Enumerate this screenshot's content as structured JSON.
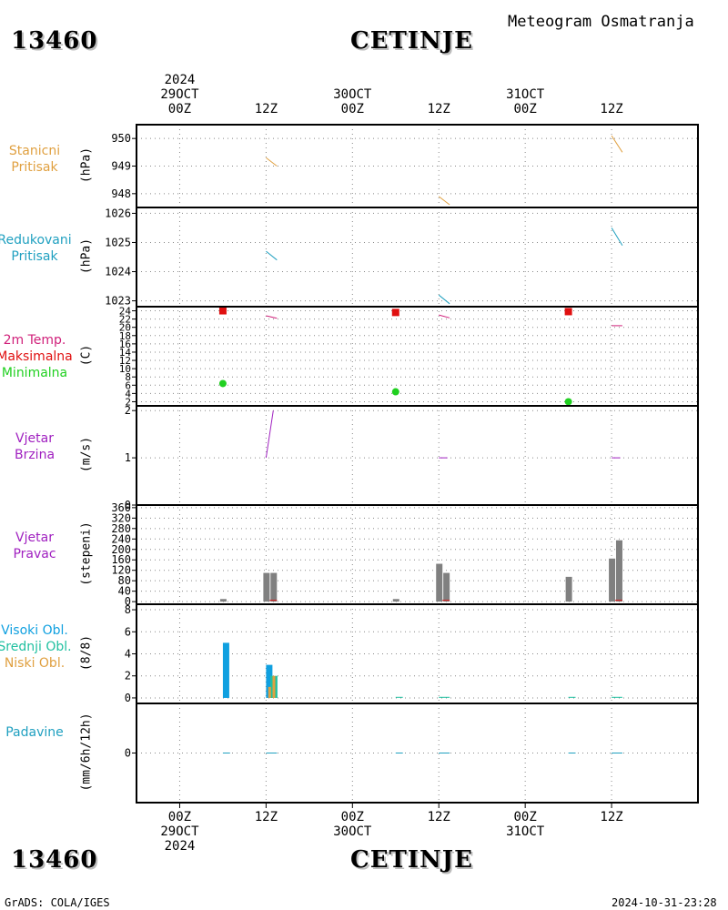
{
  "header": {
    "station_id": "13460",
    "station_name": "CETINJE",
    "product_title": "Meteogram Osmatranja"
  },
  "footer": {
    "credit": "GrADS: COLA/IGES",
    "timestamp": "2024-10-31-23:28"
  },
  "colors": {
    "pressure_station": "#e0a040",
    "pressure_reduced": "#20a0c0",
    "temp_label": "#d0207a",
    "temp_max": "#e01010",
    "temp_min": "#20d020",
    "wind": "#a020c0",
    "bars": "#808080",
    "cloud_high": "#10a0e0",
    "cloud_mid": "#20c0a0",
    "cloud_low": "#e0a040",
    "precip": "#20a0c0"
  },
  "chart_data": {
    "type": "meteogram",
    "time_axis": {
      "top_labels": [
        {
          "line1": "2024",
          "line2": "29OCT",
          "line3": "00Z"
        },
        {
          "line1": "",
          "line2": "",
          "line3": "12Z"
        },
        {
          "line1": "",
          "line2": "30OCT",
          "line3": "00Z"
        },
        {
          "line1": "",
          "line2": "",
          "line3": "12Z"
        },
        {
          "line1": "",
          "line2": "31OCT",
          "line3": "00Z"
        },
        {
          "line1": "",
          "line2": "",
          "line3": "12Z"
        }
      ],
      "bottom_labels": [
        {
          "line1": "00Z",
          "line2": "29OCT",
          "line3": "2024"
        },
        {
          "line1": "12Z",
          "line2": "",
          "line3": ""
        },
        {
          "line1": "00Z",
          "line2": "30OCT",
          "line3": ""
        },
        {
          "line1": "12Z",
          "line2": "",
          "line3": ""
        },
        {
          "line1": "00Z",
          "line2": "31OCT",
          "line3": ""
        },
        {
          "line1": "12Z",
          "line2": "",
          "line3": ""
        }
      ],
      "range_hours": [
        -6,
        72
      ]
    },
    "panels": [
      {
        "id": "station_pressure",
        "labels": [
          "Stanicni",
          "Pritisak"
        ],
        "label_color": "#e0a040",
        "unit": "(hPa)",
        "ylim": [
          947.5,
          950.5
        ],
        "ticks": [
          948,
          949,
          950
        ],
        "series": [
          {
            "kind": "line",
            "color": "#e0a040",
            "points": [
              [
                12,
                949.3
              ],
              [
                13.5,
                949.0
              ]
            ]
          },
          {
            "kind": "line",
            "color": "#e0a040",
            "points": [
              [
                36,
                947.9
              ],
              [
                37.5,
                947.6
              ]
            ]
          },
          {
            "kind": "line",
            "color": "#e0a040",
            "points": [
              [
                60,
                950.1
              ],
              [
                61.5,
                949.5
              ]
            ]
          }
        ]
      },
      {
        "id": "reduced_pressure",
        "labels": [
          "Redukovani",
          "Pritisak"
        ],
        "label_color": "#20a0c0",
        "unit": "(hPa)",
        "ylim": [
          1022.8,
          1026.2
        ],
        "ticks": [
          1023,
          1024,
          1025,
          1026
        ],
        "series": [
          {
            "kind": "line",
            "color": "#20a0c0",
            "points": [
              [
                12,
                1024.7
              ],
              [
                13.5,
                1024.4
              ]
            ]
          },
          {
            "kind": "line",
            "color": "#20a0c0",
            "points": [
              [
                36,
                1023.2
              ],
              [
                37.5,
                1022.9
              ]
            ]
          },
          {
            "kind": "line",
            "color": "#20a0c0",
            "points": [
              [
                60,
                1025.5
              ],
              [
                61.5,
                1024.9
              ]
            ]
          }
        ]
      },
      {
        "id": "temperature",
        "labels": [
          "2m Temp.",
          "Maksimalna",
          "Minimalna"
        ],
        "label_colors": [
          "#d0207a",
          "#e01010",
          "#20d020"
        ],
        "unit": "(C)",
        "ylim": [
          1,
          25
        ],
        "ticks": [
          2,
          4,
          6,
          8,
          10,
          12,
          14,
          16,
          18,
          20,
          22,
          24
        ],
        "series": [
          {
            "kind": "line",
            "color": "#d0207a",
            "points": [
              [
                12,
                22.8
              ],
              [
                13.5,
                22.2
              ]
            ]
          },
          {
            "kind": "line",
            "color": "#d0207a",
            "points": [
              [
                36,
                23.0
              ],
              [
                37.5,
                22.3
              ]
            ]
          },
          {
            "kind": "line",
            "color": "#d0207a",
            "points": [
              [
                60,
                20.4
              ],
              [
                61.5,
                20.4
              ]
            ]
          },
          {
            "kind": "square",
            "color": "#e01010",
            "points": [
              [
                6,
                24.0
              ],
              [
                30,
                23.6
              ],
              [
                54,
                23.8
              ]
            ]
          },
          {
            "kind": "dot",
            "color": "#20d020",
            "points": [
              [
                6,
                6.4
              ],
              [
                30,
                4.4
              ],
              [
                54,
                2.0
              ]
            ]
          }
        ]
      },
      {
        "id": "wind_speed",
        "labels": [
          "Vjetar",
          "Brzina"
        ],
        "label_color": "#a020c0",
        "unit": "(m/s)",
        "ylim": [
          0,
          2.1
        ],
        "ticks": [
          0,
          1,
          2
        ],
        "series": [
          {
            "kind": "line",
            "color": "#a020c0",
            "points": [
              [
                12,
                1.0
              ],
              [
                13,
                2.0
              ]
            ]
          },
          {
            "kind": "line",
            "color": "#a020c0",
            "points": [
              [
                36,
                1.0
              ],
              [
                37.2,
                1.0
              ]
            ]
          },
          {
            "kind": "line",
            "color": "#a020c0",
            "points": [
              [
                60,
                1.0
              ],
              [
                61.2,
                1.0
              ]
            ]
          }
        ]
      },
      {
        "id": "wind_direction",
        "labels": [
          "Vjetar",
          "Pravac"
        ],
        "label_color": "#a020c0",
        "unit": "(stepeni)",
        "ylim": [
          -10,
          370
        ],
        "ticks": [
          0,
          40,
          80,
          120,
          160,
          200,
          240,
          280,
          320,
          360
        ],
        "series": [
          {
            "kind": "bar",
            "color": "#808080",
            "points": [
              [
                6,
                10
              ],
              [
                12,
                110
              ],
              [
                13,
                110
              ],
              [
                30,
                10
              ],
              [
                36,
                145
              ],
              [
                37,
                110
              ],
              [
                54,
                95
              ],
              [
                60,
                165
              ],
              [
                61,
                235
              ]
            ]
          },
          {
            "kind": "line",
            "color": "#e01010",
            "points": [
              [
                12.5,
                5
              ],
              [
                13.5,
                5
              ]
            ]
          },
          {
            "kind": "line",
            "color": "#e01010",
            "points": [
              [
                36.5,
                5
              ],
              [
                37.5,
                5
              ]
            ]
          },
          {
            "kind": "line",
            "color": "#e01010",
            "points": [
              [
                60.5,
                5
              ],
              [
                61.5,
                5
              ]
            ]
          }
        ]
      },
      {
        "id": "clouds",
        "labels": [
          "Visoki Obl.",
          "Srednji Obl.",
          "Niski Obl."
        ],
        "label_colors": [
          "#10a0e0",
          "#20c0a0",
          "#e0a040"
        ],
        "unit": "(8/8)",
        "ylim": [
          -0.5,
          8.5
        ],
        "ticks": [
          0,
          2,
          4,
          6,
          8
        ],
        "series": [
          {
            "kind": "bar",
            "color": "#10a0e0",
            "points": [
              [
                6,
                5
              ],
              [
                12,
                3
              ]
            ]
          },
          {
            "kind": "bar",
            "color": "#20c0a0",
            "points": [
              [
                12.6,
                2
              ],
              [
                13.2,
                2
              ]
            ]
          },
          {
            "kind": "bar",
            "color": "#e0a040",
            "points": [
              [
                12.3,
                1
              ],
              [
                12.9,
                2
              ]
            ]
          },
          {
            "kind": "line",
            "color": "#20c0a0",
            "points": [
              [
                30,
                0.05
              ],
              [
                31,
                0.05
              ]
            ]
          },
          {
            "kind": "line",
            "color": "#20c0a0",
            "points": [
              [
                36,
                0.05
              ],
              [
                37.5,
                0.05
              ]
            ]
          },
          {
            "kind": "line",
            "color": "#20c0a0",
            "points": [
              [
                54,
                0.05
              ],
              [
                55,
                0.05
              ]
            ]
          },
          {
            "kind": "line",
            "color": "#20c0a0",
            "points": [
              [
                60,
                0.05
              ],
              [
                61.5,
                0.05
              ]
            ]
          }
        ]
      },
      {
        "id": "precipitation",
        "labels": [
          "Padavine"
        ],
        "label_color": "#20a0c0",
        "unit": "(mm/6h/12h)",
        "ylim": [
          -1,
          1
        ],
        "ticks": [
          0
        ],
        "series": [
          {
            "kind": "line",
            "color": "#20a0c0",
            "points": [
              [
                6,
                0
              ],
              [
                7,
                0
              ]
            ]
          },
          {
            "kind": "line",
            "color": "#20a0c0",
            "points": [
              [
                12,
                0
              ],
              [
                13.5,
                0
              ]
            ]
          },
          {
            "kind": "line",
            "color": "#20a0c0",
            "points": [
              [
                30,
                0
              ],
              [
                31,
                0
              ]
            ]
          },
          {
            "kind": "line",
            "color": "#20a0c0",
            "points": [
              [
                36,
                0
              ],
              [
                37.5,
                0
              ]
            ]
          },
          {
            "kind": "line",
            "color": "#20a0c0",
            "points": [
              [
                54,
                0
              ],
              [
                55,
                0
              ]
            ]
          },
          {
            "kind": "line",
            "color": "#20a0c0",
            "points": [
              [
                60,
                0
              ],
              [
                61.5,
                0
              ]
            ]
          }
        ]
      }
    ]
  }
}
